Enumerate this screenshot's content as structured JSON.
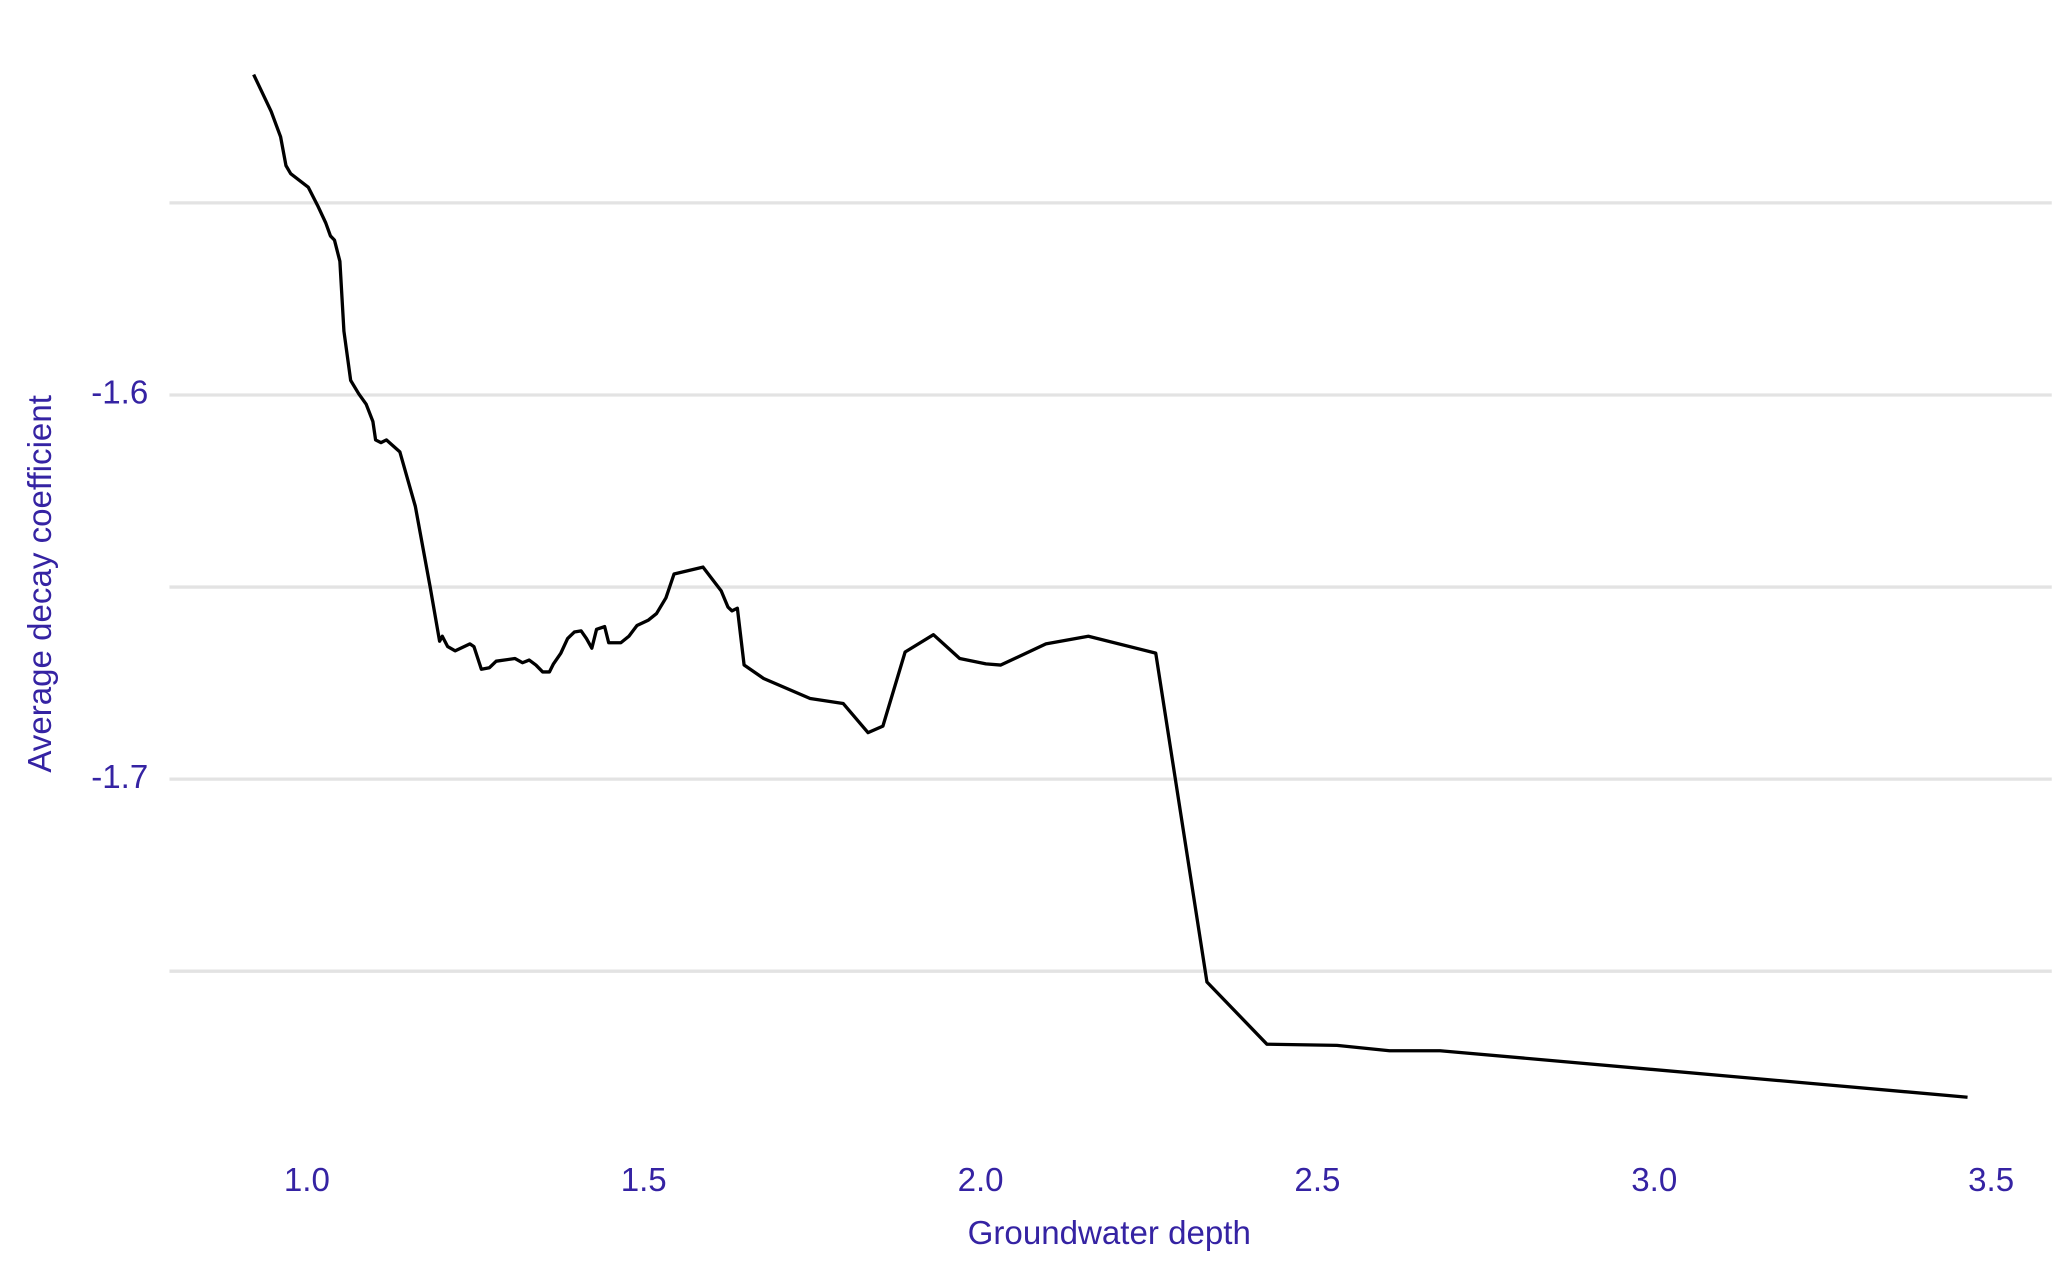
{
  "chart_data": {
    "type": "line",
    "xlabel": "Groundwater depth",
    "ylabel": "Average decay coefficient",
    "x": [
      0.921,
      0.947,
      0.961,
      0.969,
      0.976,
      1.002,
      1.016,
      1.028,
      1.035,
      1.041,
      1.049,
      1.055,
      1.065,
      1.077,
      1.088,
      1.098,
      1.102,
      1.11,
      1.118,
      1.138,
      1.161,
      1.183,
      1.197,
      1.201,
      1.209,
      1.22,
      1.242,
      1.248,
      1.259,
      1.271,
      1.281,
      1.309,
      1.32,
      1.33,
      1.34,
      1.35,
      1.36,
      1.366,
      1.377,
      1.387,
      1.397,
      1.407,
      1.415,
      1.423,
      1.43,
      1.442,
      1.448,
      1.466,
      1.478,
      1.49,
      1.507,
      1.519,
      1.533,
      1.545,
      1.588,
      1.615,
      1.625,
      1.631,
      1.639,
      1.649,
      1.678,
      1.747,
      1.796,
      1.833,
      1.855,
      1.888,
      1.93,
      1.969,
      2.008,
      2.03,
      2.097,
      2.16,
      2.26,
      2.336,
      2.425,
      2.529,
      2.607,
      2.682,
      3.465
    ],
    "series": [
      {
        "color": "#000000",
        "values": [
          -1.5166,
          -1.5262,
          -1.5328,
          -1.5403,
          -1.5424,
          -1.5459,
          -1.5507,
          -1.5552,
          -1.5586,
          -1.5597,
          -1.5652,
          -1.5834,
          -1.5962,
          -1.5997,
          -1.6024,
          -1.6069,
          -1.6117,
          -1.6124,
          -1.6117,
          -1.6148,
          -1.629,
          -1.65,
          -1.6641,
          -1.6628,
          -1.6655,
          -1.6666,
          -1.6648,
          -1.6655,
          -1.6714,
          -1.671,
          -1.6693,
          -1.6686,
          -1.6697,
          -1.669,
          -1.6703,
          -1.6721,
          -1.6721,
          -1.67,
          -1.6672,
          -1.6634,
          -1.6617,
          -1.6614,
          -1.6634,
          -1.6659,
          -1.661,
          -1.6603,
          -1.6645,
          -1.6645,
          -1.6628,
          -1.66,
          -1.6586,
          -1.6569,
          -1.6528,
          -1.6466,
          -1.6448,
          -1.651,
          -1.6552,
          -1.6562,
          -1.6555,
          -1.6703,
          -1.6738,
          -1.679,
          -1.6803,
          -1.6879,
          -1.6862,
          -1.6669,
          -1.6624,
          -1.6686,
          -1.67,
          -1.6703,
          -1.6648,
          -1.6628,
          -1.6672,
          -1.7528,
          -1.769,
          -1.7693,
          -1.7707,
          -1.7707,
          -1.7828
        ]
      }
    ],
    "xlim": [
      0.796,
      3.59
    ],
    "xticks": [
      {
        "value": 1,
        "label": "1.0"
      },
      1.5,
      {
        "value": 2,
        "label": "2.0"
      },
      2.5,
      {
        "value": 3,
        "label": "3.0"
      },
      3.5
    ],
    "ylim": [
      -1.797,
      -1.511
    ],
    "yticks": [
      -1.7,
      -1.6
    ],
    "minor_yticks": [
      -1.75,
      -1.65,
      -1.55
    ],
    "grid": true,
    "text_color": "#3523a3"
  }
}
